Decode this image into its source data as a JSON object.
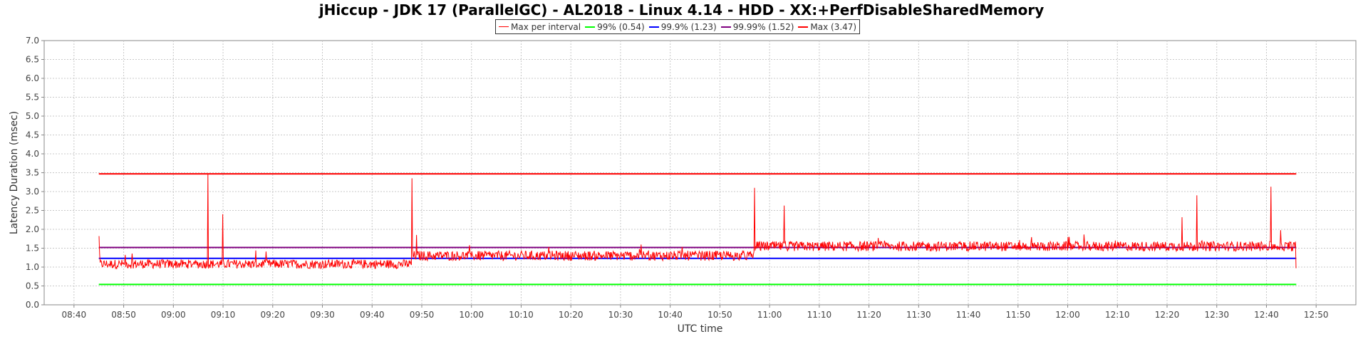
{
  "chart_data": {
    "type": "line",
    "title": "jHiccup - JDK 17 (ParallelGC) - AL2018 - Linux 4.14 - HDD - XX:+PerfDisableSharedMemory",
    "xlabel": "UTC time",
    "ylabel": "Latency Duration (msec)",
    "xlim": [
      "08:34",
      "12:58"
    ],
    "ylim": [
      0,
      7.0
    ],
    "yticks": [
      "0.0",
      "0.5",
      "1.0",
      "1.5",
      "2.0",
      "2.5",
      "3.0",
      "3.5",
      "4.0",
      "4.5",
      "5.0",
      "5.5",
      "6.0",
      "6.5",
      "7.0"
    ],
    "xticks": [
      "08:40",
      "08:50",
      "09:00",
      "09:10",
      "09:20",
      "09:30",
      "09:40",
      "09:50",
      "10:00",
      "10:10",
      "10:20",
      "10:30",
      "10:40",
      "10:50",
      "11:00",
      "11:10",
      "11:20",
      "11:30",
      "11:40",
      "11:50",
      "12:00",
      "12:10",
      "12:20",
      "12:30",
      "12:40",
      "12:50"
    ],
    "grid": true,
    "legend_position": "top-center",
    "series": [
      {
        "name": "Max per interval",
        "color": "#ff0000",
        "segments": [
          {
            "start": "08:45",
            "end": "09:48",
            "mean": 1.08,
            "noise": 0.12
          },
          {
            "start": "09:48",
            "end": "10:57",
            "mean": 1.3,
            "noise": 0.13
          },
          {
            "start": "10:57",
            "end": "12:46",
            "mean": 1.55,
            "noise": 0.13
          }
        ],
        "spikes": [
          {
            "t": "08:45",
            "v": 1.82
          },
          {
            "t": "09:07",
            "v": 3.47
          },
          {
            "t": "09:10",
            "v": 2.4
          },
          {
            "t": "09:48",
            "v": 3.35
          },
          {
            "t": "09:49",
            "v": 1.85
          },
          {
            "t": "10:57",
            "v": 3.1
          },
          {
            "t": "11:03",
            "v": 2.63
          },
          {
            "t": "12:23",
            "v": 2.32
          },
          {
            "t": "12:26",
            "v": 2.9
          },
          {
            "t": "12:41",
            "v": 3.13
          },
          {
            "t": "12:46",
            "v": 0.97
          }
        ]
      },
      {
        "name": "99% (0.54)",
        "color": "#00ff00",
        "value": 0.54,
        "start": "08:45",
        "end": "12:46"
      },
      {
        "name": "99.9% (1.23)",
        "color": "#0000ff",
        "value": 1.23,
        "start": "08:45",
        "end": "12:46"
      },
      {
        "name": "99.99% (1.52)",
        "color": "#800080",
        "value": 1.52,
        "start": "08:45",
        "end": "12:46"
      },
      {
        "name": "Max (3.47)",
        "color": "#ff0000",
        "value": 3.47,
        "start": "08:45",
        "end": "12:46"
      }
    ]
  }
}
